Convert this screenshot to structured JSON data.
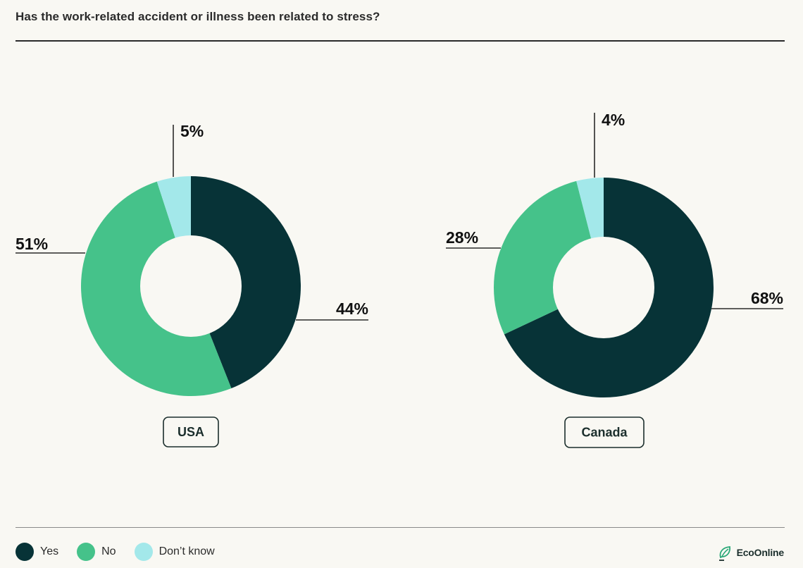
{
  "title": "Has the work-related accident or illness been related to stress?",
  "colors": {
    "yes": "#073337",
    "no": "#45c28a",
    "dont_know": "#a3e8ea",
    "background": "#f9f8f3"
  },
  "legend": [
    {
      "key": "yes",
      "label": "Yes"
    },
    {
      "key": "no",
      "label": "No"
    },
    {
      "key": "dont_know",
      "label": "Don’t know"
    }
  ],
  "brand": {
    "name": "EcoOnline",
    "icon": "leaf-logo-icon"
  },
  "chart_data": [
    {
      "type": "pie",
      "title": "USA",
      "categories": [
        "Yes",
        "No",
        "Don’t know"
      ],
      "values": [
        44,
        51,
        5
      ],
      "labels": [
        "44%",
        "51%",
        "5%"
      ]
    },
    {
      "type": "pie",
      "title": "Canada",
      "categories": [
        "Yes",
        "No",
        "Don’t know"
      ],
      "values": [
        68,
        28,
        4
      ],
      "labels": [
        "68%",
        "28%",
        "4%"
      ]
    }
  ]
}
